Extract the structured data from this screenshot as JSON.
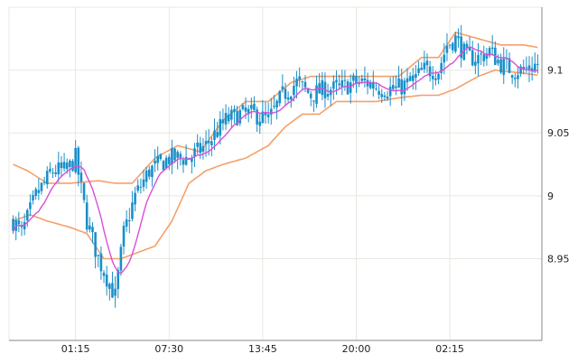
{
  "chart_data": {
    "type": "candlestick",
    "title": "",
    "xlabel": "",
    "ylabel": "",
    "grid": true,
    "ylim": [
      8.885,
      9.15
    ],
    "y_ticks": [
      {
        "value": 9.1,
        "label": "9.1"
      },
      {
        "value": 9.05,
        "label": "9.05"
      },
      {
        "value": 9.0,
        "label": "9"
      },
      {
        "value": 8.95,
        "label": "8.95"
      }
    ],
    "x_ticks": [
      {
        "index": 22,
        "label": "01:15"
      },
      {
        "index": 55,
        "label": "07:30"
      },
      {
        "index": 88,
        "label": "13:45"
      },
      {
        "index": 121,
        "label": "20:00"
      },
      {
        "index": 154,
        "label": "02:15"
      }
    ],
    "bar_count": 186,
    "colors": {
      "candle": "#1a8fc9",
      "bollinger": "#f5a06a",
      "moving_average": "#d84fd8",
      "grid": "#e8e8e0",
      "axis": "#888888"
    },
    "price_anchors": [
      [
        0,
        8.98
      ],
      [
        3,
        8.97
      ],
      [
        8,
        9.0
      ],
      [
        14,
        9.02
      ],
      [
        19,
        9.02
      ],
      [
        22,
        9.03
      ],
      [
        26,
        8.98
      ],
      [
        30,
        8.95
      ],
      [
        34,
        8.93
      ],
      [
        36,
        8.92
      ],
      [
        39,
        8.97
      ],
      [
        43,
        9.0
      ],
      [
        48,
        9.02
      ],
      [
        55,
        9.03
      ],
      [
        62,
        9.03
      ],
      [
        68,
        9.04
      ],
      [
        75,
        9.06
      ],
      [
        80,
        9.065
      ],
      [
        85,
        9.065
      ],
      [
        90,
        9.06
      ],
      [
        95,
        9.08
      ],
      [
        100,
        9.09
      ],
      [
        105,
        9.08
      ],
      [
        110,
        9.085
      ],
      [
        115,
        9.085
      ],
      [
        120,
        9.09
      ],
      [
        125,
        9.09
      ],
      [
        130,
        9.085
      ],
      [
        135,
        9.085
      ],
      [
        140,
        9.09
      ],
      [
        145,
        9.1
      ],
      [
        150,
        9.1
      ],
      [
        153,
        9.12
      ],
      [
        156,
        9.125
      ],
      [
        160,
        9.11
      ],
      [
        164,
        9.11
      ],
      [
        168,
        9.115
      ],
      [
        172,
        9.105
      ],
      [
        176,
        9.1
      ],
      [
        180,
        9.1
      ],
      [
        185,
        9.105
      ]
    ],
    "bollinger_upper_anchors": [
      [
        0,
        9.025
      ],
      [
        5,
        9.02
      ],
      [
        12,
        9.01
      ],
      [
        20,
        9.01
      ],
      [
        30,
        9.012
      ],
      [
        36,
        9.01
      ],
      [
        42,
        9.01
      ],
      [
        50,
        9.03
      ],
      [
        58,
        9.04
      ],
      [
        66,
        9.035
      ],
      [
        74,
        9.06
      ],
      [
        82,
        9.075
      ],
      [
        90,
        9.075
      ],
      [
        98,
        9.09
      ],
      [
        105,
        9.095
      ],
      [
        112,
        9.095
      ],
      [
        120,
        9.095
      ],
      [
        128,
        9.095
      ],
      [
        136,
        9.095
      ],
      [
        144,
        9.11
      ],
      [
        150,
        9.11
      ],
      [
        156,
        9.13
      ],
      [
        164,
        9.125
      ],
      [
        172,
        9.12
      ],
      [
        180,
        9.12
      ],
      [
        185,
        9.118
      ]
    ],
    "bollinger_lower_anchors": [
      [
        0,
        8.98
      ],
      [
        6,
        8.985
      ],
      [
        12,
        8.98
      ],
      [
        20,
        8.975
      ],
      [
        26,
        8.97
      ],
      [
        32,
        8.95
      ],
      [
        38,
        8.95
      ],
      [
        44,
        8.955
      ],
      [
        50,
        8.96
      ],
      [
        56,
        8.98
      ],
      [
        62,
        9.01
      ],
      [
        68,
        9.02
      ],
      [
        74,
        9.025
      ],
      [
        82,
        9.03
      ],
      [
        90,
        9.04
      ],
      [
        96,
        9.055
      ],
      [
        102,
        9.065
      ],
      [
        108,
        9.065
      ],
      [
        114,
        9.075
      ],
      [
        120,
        9.075
      ],
      [
        128,
        9.075
      ],
      [
        136,
        9.078
      ],
      [
        144,
        9.08
      ],
      [
        150,
        9.08
      ],
      [
        156,
        9.085
      ],
      [
        164,
        9.095
      ],
      [
        170,
        9.1
      ],
      [
        178,
        9.098
      ],
      [
        185,
        9.096
      ]
    ]
  }
}
